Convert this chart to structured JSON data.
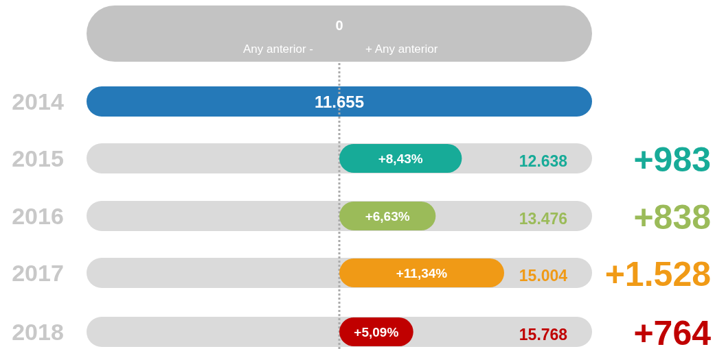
{
  "chart_data": {
    "type": "bar",
    "orientation": "horizontal",
    "categories": [
      "2014",
      "2015",
      "2016",
      "2017",
      "2018"
    ],
    "series": [
      {
        "values": [
          null,
          8.43,
          6.63,
          11.34,
          5.09
        ],
        "colors": [
          "#2579b8",
          "#17ab98",
          "#9bbb59",
          "#f09a16",
          "#c00000"
        ],
        "value_labels": [
          null,
          "+8,43%",
          "+6,63%",
          "+11,34%",
          "+5,09%"
        ]
      }
    ],
    "tick_labels": "y",
    "ref_lines": [
      {
        "axis": "x",
        "value": 0,
        "color": "#aaaaaa",
        "line_style": "dotted"
      }
    ],
    "annotations": [
      "0",
      "Any anterior -",
      "+ Any anterior",
      "11.655",
      "12.638",
      "13.476",
      "15.004",
      "15.768",
      "+983",
      "+838",
      "+1.528",
      "+764"
    ]
  }
}
